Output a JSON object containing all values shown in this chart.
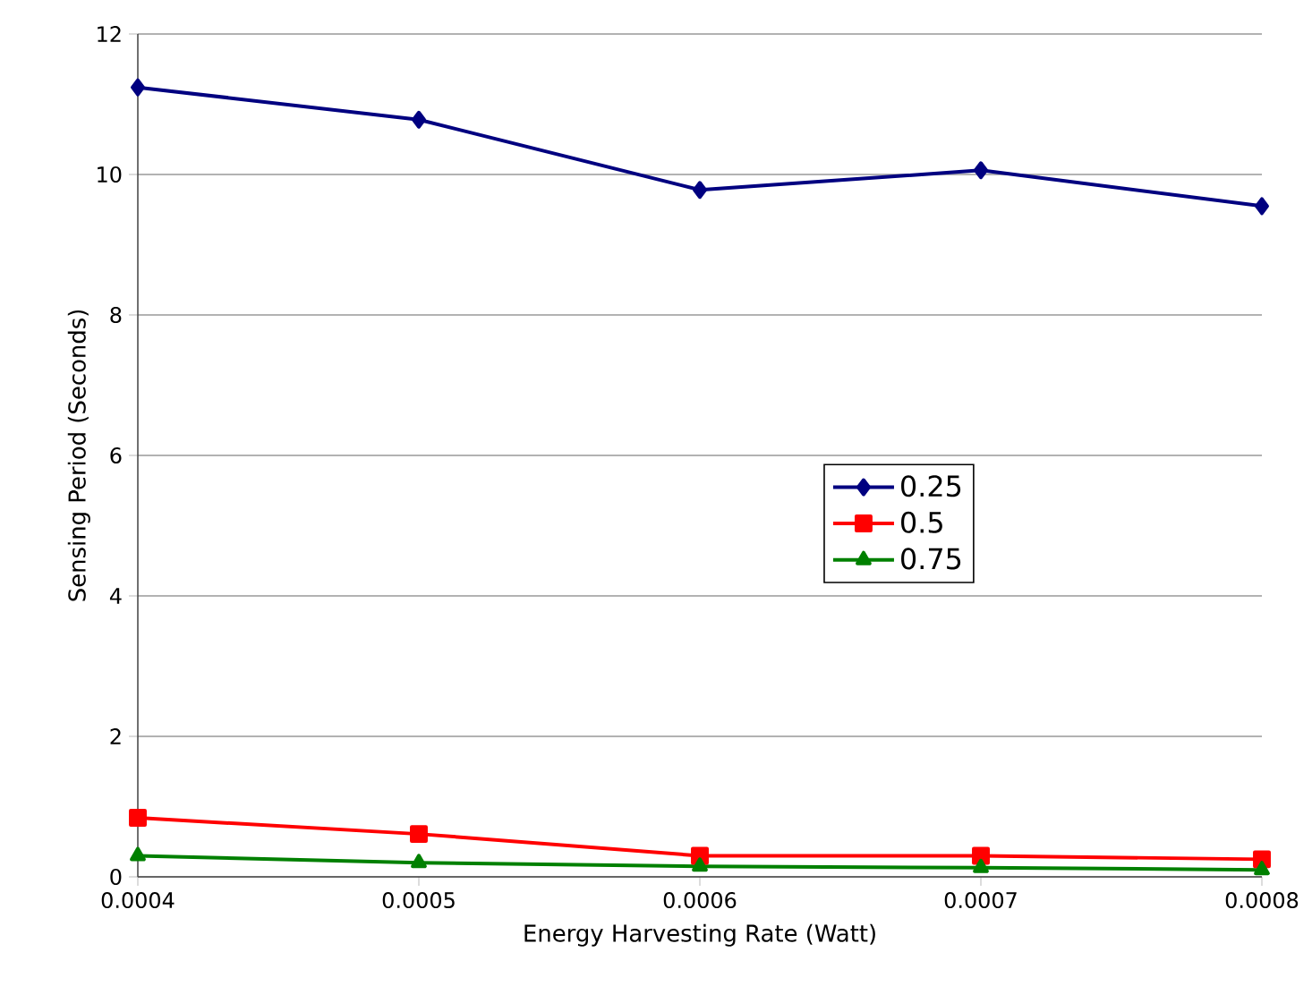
{
  "chart_data": {
    "type": "line",
    "xlabel": "Energy Harvesting Rate (Watt)",
    "ylabel": "Sensing Period (Seconds)",
    "x": [
      0.0004,
      0.0005,
      0.0006,
      0.0007,
      0.0008
    ],
    "series": [
      {
        "name": "0.25",
        "color": "#000080",
        "marker": "diamond",
        "values": [
          11.24,
          10.78,
          9.78,
          10.06,
          9.55
        ]
      },
      {
        "name": "0.5",
        "color": "#ff0000",
        "marker": "square",
        "values": [
          0.84,
          0.61,
          0.3,
          0.3,
          0.25
        ]
      },
      {
        "name": "0.75",
        "color": "#008000",
        "marker": "triangle",
        "values": [
          0.3,
          0.2,
          0.15,
          0.13,
          0.1
        ]
      }
    ],
    "xlim": [
      0.0004,
      0.0008
    ],
    "xticks": [
      0.0004,
      0.0005,
      0.0006,
      0.0007,
      0.0008
    ],
    "ylim": [
      0,
      12
    ],
    "yticks": [
      0,
      2,
      4,
      6,
      8,
      10,
      12
    ],
    "grid": "y",
    "legend": "right",
    "line_style": "solid"
  }
}
